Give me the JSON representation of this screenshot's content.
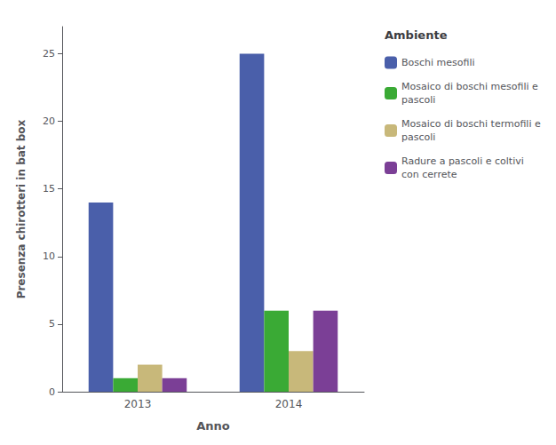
{
  "chart_data": {
    "type": "bar",
    "xlabel": "Anno",
    "ylabel": "Presenza chirotteri in bat box",
    "legend_title": "Ambiente",
    "categories": [
      "2013",
      "2014"
    ],
    "series": [
      {
        "name": "Boschi mesofili",
        "color": "#4a5faa",
        "values": [
          14,
          25
        ]
      },
      {
        "name": "Mosaico di boschi mesofili e\npascoli",
        "color": "#3aaa35",
        "values": [
          1,
          6
        ]
      },
      {
        "name": "Mosaico di boschi termofili e\npascoli",
        "color": "#c8b87a",
        "values": [
          2,
          3
        ]
      },
      {
        "name": "Radure a pascoli e coltivi\ncon cerrete",
        "color": "#7b3f96",
        "values": [
          1,
          6
        ]
      }
    ],
    "ylim": [
      0,
      27
    ],
    "yticks": [
      0,
      5,
      10,
      15,
      20,
      25
    ],
    "grid": false,
    "legend": "right"
  }
}
